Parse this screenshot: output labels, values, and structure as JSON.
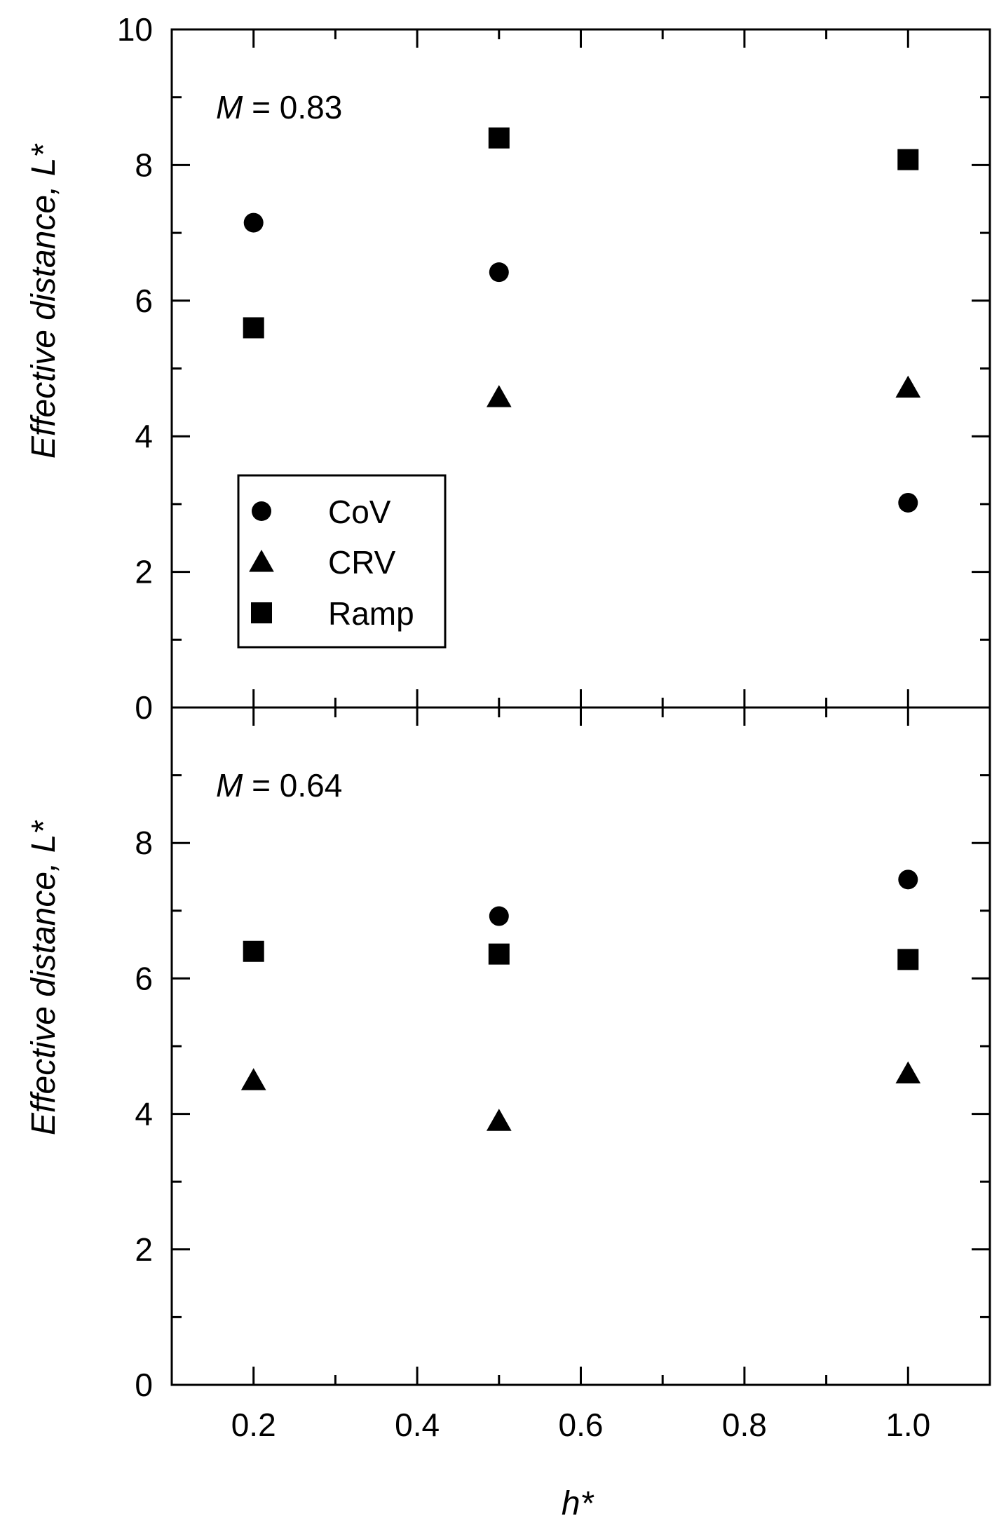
{
  "chart_data": [
    {
      "type": "scatter",
      "panel": "top",
      "annotation": {
        "var": "M",
        "rest": " = 0.83"
      },
      "ylabel": "Effective distance, L*",
      "xlabel": "",
      "xlim": [
        0.1,
        1.1
      ],
      "ylim": [
        0,
        10
      ],
      "x_ticks": [],
      "y_ticks": [
        "0",
        "2",
        "4",
        "6",
        "8",
        "10"
      ],
      "legend": {
        "placement": "bottom-left",
        "entries": [
          "CoV",
          "CRV",
          "Ramp"
        ]
      },
      "series": [
        {
          "name": "CoV",
          "marker": "circle",
          "points": [
            [
              0.2,
              7.15
            ],
            [
              0.5,
              6.42
            ],
            [
              1.0,
              3.02
            ]
          ]
        },
        {
          "name": "CRV",
          "marker": "triangle",
          "points": [
            [
              0.2,
              null
            ],
            [
              0.5,
              4.58
            ],
            [
              1.0,
              4.72
            ]
          ]
        },
        {
          "name": "Ramp",
          "marker": "square",
          "points": [
            [
              0.2,
              5.6
            ],
            [
              0.5,
              8.4
            ],
            [
              1.0,
              8.08
            ]
          ]
        }
      ]
    },
    {
      "type": "scatter",
      "panel": "bottom",
      "annotation": {
        "var": "M",
        "rest": " = 0.64"
      },
      "ylabel": "Effective distance, L*",
      "xlabel": "h*",
      "xlim": [
        0.1,
        1.1
      ],
      "ylim": [
        0,
        10
      ],
      "x_ticks": [
        "0.2",
        "0.4",
        "0.6",
        "0.8",
        "1.0"
      ],
      "y_ticks": [
        "0",
        "2",
        "4",
        "6",
        "8"
      ],
      "legend": null,
      "series": [
        {
          "name": "CoV",
          "marker": "circle",
          "points": [
            [
              0.5,
              6.92
            ],
            [
              1.0,
              7.46
            ]
          ]
        },
        {
          "name": "CRV",
          "marker": "triangle",
          "points": [
            [
              0.2,
              4.5
            ],
            [
              0.5,
              3.9
            ],
            [
              1.0,
              4.6
            ]
          ]
        },
        {
          "name": "Ramp",
          "marker": "square",
          "points": [
            [
              0.2,
              6.4
            ],
            [
              0.5,
              6.36
            ],
            [
              1.0,
              6.28
            ]
          ]
        }
      ]
    }
  ]
}
